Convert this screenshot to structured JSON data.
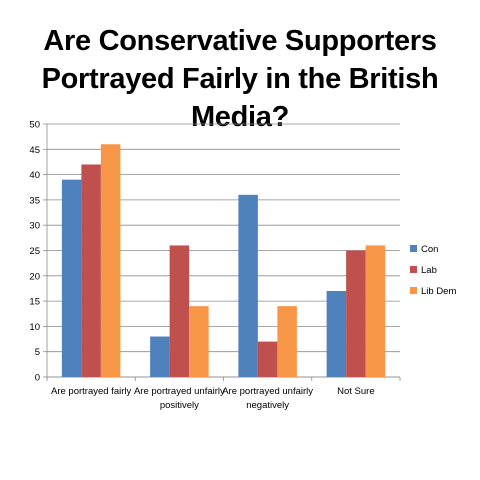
{
  "chart_data": {
    "type": "bar",
    "title_lines": [
      "Are Conservative Supporters",
      "Portrayed Fairly in the British Media?"
    ],
    "categories": [
      [
        "Are portrayed fairly"
      ],
      [
        "Are portrayed unfairly",
        "positively"
      ],
      [
        "Are portrayed unfairly",
        "negatively"
      ],
      [
        "Not Sure"
      ]
    ],
    "series": [
      {
        "name": "Con",
        "color": "#4F81BD",
        "values": [
          39,
          8,
          36,
          17
        ]
      },
      {
        "name": "Lab",
        "color": "#C0504D",
        "values": [
          42,
          26,
          7,
          25
        ]
      },
      {
        "name": "Lib Dem",
        "color": "#F79646",
        "values": [
          46,
          14,
          14,
          26
        ]
      }
    ],
    "ylim": [
      0,
      50
    ],
    "ytick_step": 5,
    "grid": true,
    "legend_position": "right"
  }
}
